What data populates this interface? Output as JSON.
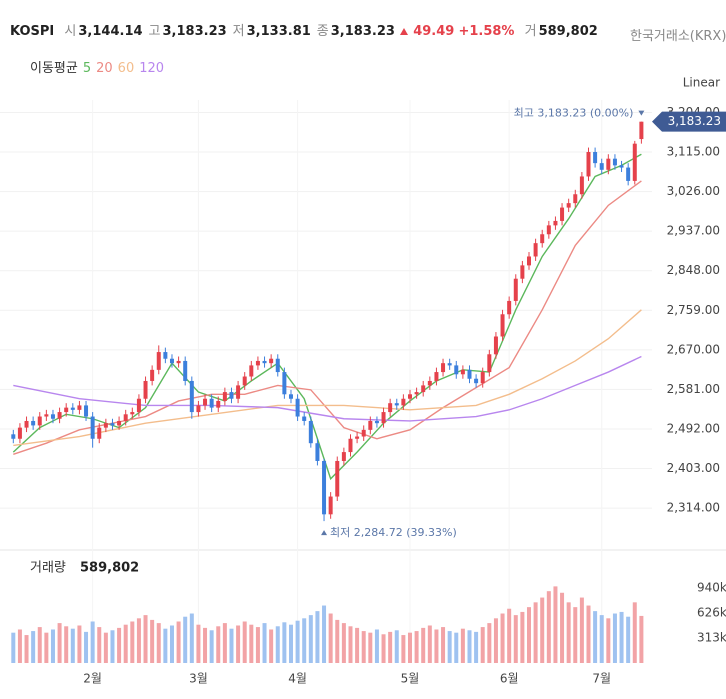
{
  "header": {
    "title": "KOSPI",
    "source": "한국거래소(KRX)",
    "fields": [
      {
        "label": "시",
        "value": "3,144.14"
      },
      {
        "label": "고",
        "value": "3,183.23"
      },
      {
        "label": "저",
        "value": "3,133.81"
      },
      {
        "label": "종",
        "value": "3,183.23"
      }
    ],
    "change": "49.49",
    "change_pct": "+1.58%",
    "volume_field": {
      "label": "거",
      "value": "589,802"
    }
  },
  "chart_data": {
    "type": "candlestick",
    "scale_label": "Linear",
    "ma_title": "이동평균",
    "open": [
      2480,
      2470,
      2495,
      2510,
      2500,
      2520,
      2525,
      2515,
      2530,
      2540,
      2535,
      2545,
      2520,
      2470,
      2495,
      2505,
      2500,
      2510,
      2525,
      2530,
      2560,
      2600,
      2625,
      2665,
      2650,
      2640,
      2645,
      2600,
      2530,
      2545,
      2560,
      2540,
      2555,
      2575,
      2560,
      2590,
      2610,
      2635,
      2645,
      2640,
      2650,
      2620,
      2570,
      2560,
      2520,
      2510,
      2460,
      2420,
      2300,
      2340,
      2420,
      2440,
      2470,
      2475,
      2490,
      2510,
      2505,
      2530,
      2550,
      2545,
      2560,
      2570,
      2575,
      2590,
      2600,
      2620,
      2640,
      2635,
      2615,
      2625,
      2605,
      2595,
      2620,
      2660,
      2700,
      2750,
      2780,
      2830,
      2860,
      2880,
      2910,
      2930,
      2950,
      2960,
      2990,
      3000,
      3020,
      3060,
      3115,
      3090,
      3075,
      3100,
      3085,
      3080,
      3050,
      3144.14
    ],
    "high": [
      2490,
      2505,
      2520,
      2520,
      2530,
      2535,
      2535,
      2540,
      2550,
      2550,
      2555,
      2555,
      2530,
      2505,
      2515,
      2515,
      2520,
      2535,
      2540,
      2570,
      2610,
      2635,
      2680,
      2675,
      2660,
      2655,
      2655,
      2610,
      2555,
      2570,
      2570,
      2565,
      2585,
      2585,
      2600,
      2620,
      2645,
      2655,
      2655,
      2660,
      2660,
      2630,
      2580,
      2570,
      2530,
      2520,
      2470,
      2425,
      2350,
      2430,
      2450,
      2480,
      2485,
      2500,
      2520,
      2520,
      2540,
      2560,
      2560,
      2570,
      2580,
      2585,
      2600,
      2610,
      2630,
      2650,
      2650,
      2645,
      2635,
      2635,
      2615,
      2630,
      2670,
      2710,
      2760,
      2790,
      2840,
      2870,
      2890,
      2920,
      2940,
      2960,
      2970,
      3000,
      3010,
      3030,
      3070,
      3125,
      3125,
      3100,
      3110,
      3110,
      3095,
      3090,
      3140,
      3183.23
    ],
    "low": [
      2460,
      2460,
      2485,
      2490,
      2490,
      2510,
      2505,
      2505,
      2520,
      2525,
      2525,
      2510,
      2450,
      2460,
      2485,
      2490,
      2490,
      2500,
      2515,
      2520,
      2550,
      2590,
      2615,
      2640,
      2630,
      2630,
      2590,
      2515,
      2520,
      2535,
      2530,
      2530,
      2545,
      2550,
      2550,
      2580,
      2600,
      2625,
      2630,
      2630,
      2610,
      2560,
      2550,
      2510,
      2500,
      2450,
      2410,
      2284.72,
      2290,
      2330,
      2410,
      2430,
      2460,
      2465,
      2480,
      2495,
      2495,
      2520,
      2535,
      2535,
      2550,
      2560,
      2565,
      2580,
      2590,
      2610,
      2625,
      2605,
      2605,
      2595,
      2585,
      2585,
      2610,
      2650,
      2690,
      2740,
      2770,
      2820,
      2850,
      2870,
      2900,
      2920,
      2940,
      2950,
      2980,
      2990,
      3010,
      3050,
      3080,
      3065,
      3065,
      3075,
      3070,
      3040,
      3042,
      3133.81
    ],
    "close": [
      2470,
      2495,
      2510,
      2500,
      2520,
      2525,
      2515,
      2530,
      2540,
      2535,
      2545,
      2520,
      2470,
      2495,
      2505,
      2500,
      2510,
      2525,
      2530,
      2560,
      2600,
      2625,
      2665,
      2650,
      2640,
      2645,
      2600,
      2530,
      2545,
      2560,
      2540,
      2555,
      2575,
      2560,
      2590,
      2610,
      2635,
      2645,
      2640,
      2650,
      2620,
      2570,
      2560,
      2520,
      2510,
      2460,
      2420,
      2300,
      2340,
      2420,
      2440,
      2470,
      2475,
      2490,
      2510,
      2505,
      2530,
      2550,
      2545,
      2560,
      2570,
      2575,
      2590,
      2600,
      2620,
      2640,
      2635,
      2615,
      2625,
      2605,
      2595,
      2620,
      2660,
      2700,
      2750,
      2780,
      2830,
      2860,
      2880,
      2910,
      2930,
      2950,
      2960,
      2990,
      3000,
      3020,
      3060,
      3115,
      3090,
      3075,
      3100,
      3085,
      3080,
      3050,
      3133.74,
      3183.23
    ],
    "volume": [
      380000,
      420000,
      350000,
      400000,
      450000,
      380000,
      420000,
      500000,
      460000,
      430000,
      470000,
      390000,
      520000,
      450000,
      380000,
      410000,
      440000,
      480000,
      520000,
      560000,
      600000,
      540000,
      500000,
      430000,
      470000,
      520000,
      580000,
      620000,
      480000,
      440000,
      410000,
      460000,
      500000,
      430000,
      470000,
      520000,
      480000,
      450000,
      500000,
      420000,
      460000,
      510000,
      480000,
      530000,
      560000,
      600000,
      650000,
      720000,
      620000,
      540000,
      500000,
      460000,
      440000,
      400000,
      380000,
      420000,
      360000,
      390000,
      410000,
      350000,
      380000,
      400000,
      440000,
      470000,
      420000,
      450000,
      400000,
      380000,
      430000,
      410000,
      390000,
      450000,
      500000,
      560000,
      620000,
      680000,
      600000,
      640000,
      700000,
      760000,
      820000,
      900000,
      960000,
      880000,
      760000,
      700000,
      820000,
      720000,
      650000,
      600000,
      560000,
      620000,
      640000,
      580000,
      760000,
      589802
    ],
    "ma": [
      {
        "name": "5",
        "color": "#5cb85c",
        "x": [
          0,
          4,
          8,
          12,
          16,
          20,
          24,
          28,
          32,
          36,
          40,
          44,
          48,
          52,
          56,
          60,
          64,
          68,
          72,
          76,
          80,
          84,
          88,
          92,
          95
        ],
        "values": [
          2440,
          2495,
          2525,
          2515,
          2495,
          2540,
          2640,
          2575,
          2555,
          2600,
          2640,
          2560,
          2380,
          2440,
          2505,
          2555,
          2600,
          2625,
          2620,
          2760,
          2880,
          2965,
          3060,
          3085,
          3110
        ]
      },
      {
        "name": "20",
        "color": "#ec8a84",
        "x": [
          0,
          5,
          10,
          15,
          20,
          25,
          30,
          35,
          40,
          45,
          50,
          55,
          60,
          65,
          70,
          75,
          80,
          85,
          90,
          95
        ],
        "values": [
          2435,
          2460,
          2490,
          2505,
          2520,
          2555,
          2570,
          2570,
          2590,
          2580,
          2495,
          2470,
          2490,
          2540,
          2585,
          2630,
          2760,
          2905,
          2995,
          3050
        ]
      },
      {
        "name": "60",
        "color": "#f3bd8c",
        "x": [
          0,
          10,
          20,
          30,
          40,
          50,
          60,
          70,
          75,
          80,
          85,
          90,
          95
        ],
        "values": [
          2455,
          2475,
          2505,
          2525,
          2545,
          2545,
          2535,
          2545,
          2570,
          2605,
          2645,
          2695,
          2760
        ]
      },
      {
        "name": "120",
        "color": "#b886ee",
        "x": [
          0,
          10,
          20,
          30,
          40,
          50,
          60,
          70,
          75,
          80,
          85,
          90,
          95
        ],
        "values": [
          2590,
          2560,
          2545,
          2545,
          2540,
          2515,
          2510,
          2520,
          2535,
          2560,
          2590,
          2620,
          2655
        ]
      }
    ],
    "up_color": "#e5414b",
    "down_color": "#3c7fdc",
    "volume_up_color": "#f2a3a6",
    "volume_down_color": "#9fc2f0",
    "xlim": [
      -0.5,
      96
    ],
    "ylim": [
      2231,
      3232
    ],
    "xticks": [
      {
        "value": 12,
        "label": "2월"
      },
      {
        "value": 28,
        "label": "3월"
      },
      {
        "value": 43,
        "label": "4월"
      },
      {
        "value": 60,
        "label": "5월"
      },
      {
        "value": 75,
        "label": "6월"
      },
      {
        "value": 89,
        "label": "7월"
      }
    ],
    "yticks": [
      {
        "value": 2314,
        "label": "2,314.00"
      },
      {
        "value": 2403,
        "label": "2,403.00"
      },
      {
        "value": 2492,
        "label": "2,492.00"
      },
      {
        "value": 2581,
        "label": "2,581.00"
      },
      {
        "value": 2670,
        "label": "2,670.00"
      },
      {
        "value": 2759,
        "label": "2,759.00"
      },
      {
        "value": 2848,
        "label": "2,848.00"
      },
      {
        "value": 2937,
        "label": "2,937.00"
      },
      {
        "value": 3026,
        "label": "3,026.00"
      },
      {
        "value": 3115,
        "label": "3,115.00"
      },
      {
        "value": 3204,
        "label": "3,204.00"
      }
    ],
    "volume_title": "거래량",
    "last_volume": {
      "value": 589802,
      "label": "589,802"
    },
    "vlim": [
      0,
      1040000
    ],
    "vticks": [
      {
        "value": 313000,
        "label": "313k"
      },
      {
        "value": 626000,
        "label": "626k"
      },
      {
        "value": 940000,
        "label": "940k"
      }
    ],
    "last_label": {
      "value": 3183.23,
      "label": "3,183.23"
    },
    "max_annotation": {
      "value": 3183.23,
      "index": 95,
      "label": "최고 3,183.23 (0.00%)"
    },
    "min_annotation": {
      "value": 2284.72,
      "index": 47,
      "label": "최저 2,284.72 (39.33%)"
    },
    "grid": true
  }
}
